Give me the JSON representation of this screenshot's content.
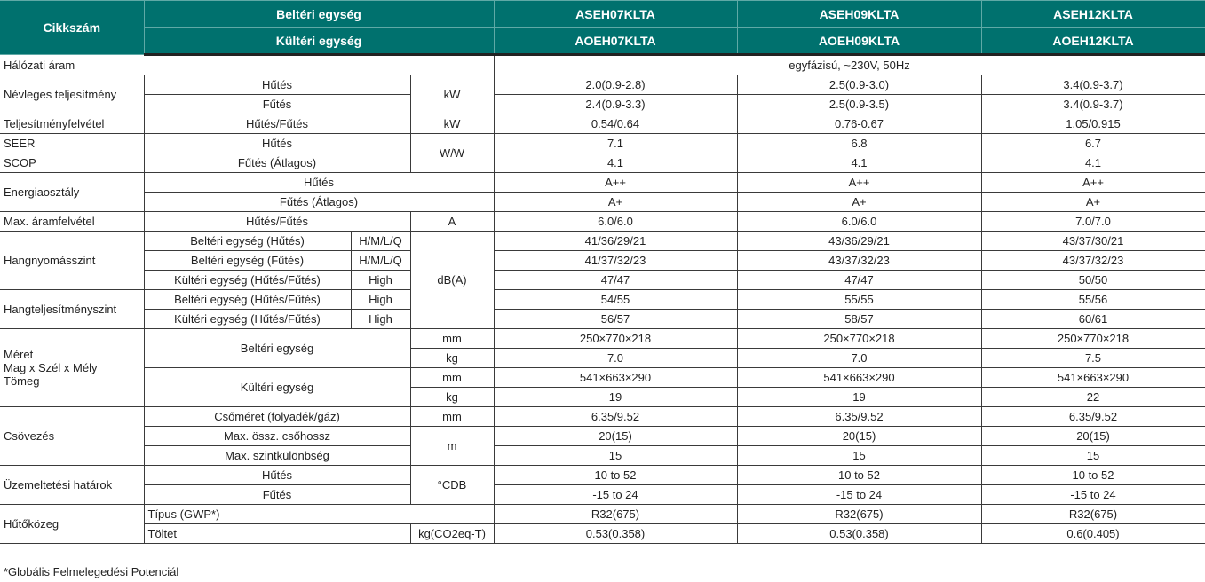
{
  "header": {
    "code": "Cikkszám",
    "indoor": "Beltéri egység",
    "outdoor": "Kültéri egység",
    "indoor_models": [
      "ASEH07KLTA",
      "ASEH09KLTA",
      "ASEH12KLTA"
    ],
    "outdoor_models": [
      "AOEH07KLTA",
      "AOEH09KLTA",
      "AOEH12KLTA"
    ]
  },
  "labels": {
    "power_supply": "Hálózati áram",
    "nominal_capacity": "Névleges teljesítmény",
    "cooling": "Hűtés",
    "heating": "Fűtés",
    "heating_avg": "Fűtés (Átlagos)",
    "cool_heat": "Hűtés/Fűtés",
    "kw": "kW",
    "power_input": "Teljesítményfelvétel",
    "seer": "SEER",
    "scop": "SCOP",
    "ww": "W/W",
    "energy_class": "Energiaosztály",
    "max_current": "Max. áramfelvétel",
    "amp": "A",
    "sound_pressure": "Hangnyomásszint",
    "indoor_cool": "Beltéri egység (Hűtés)",
    "indoor_heat": "Beltéri egység (Fűtés)",
    "outdoor_cool_heat": "Kültéri egység (Hűtés/Fűtés)",
    "indoor_cool_heat": "Beltéri egység (Hűtés/Fűtés)",
    "hmlq": "H/M/L/Q",
    "high": "High",
    "dba": "dB(A)",
    "sound_power": "Hangteljesítményszint",
    "size_1": "Méret",
    "size_2": "Mag x Szél x Mély",
    "size_3": "Tömeg",
    "indoor_unit": "Beltéri egység",
    "outdoor_unit": "Kültéri egység",
    "mm": "mm",
    "kg": "kg",
    "piping": "Csövezés",
    "pipe_size": "Csőméret (folyadék/gáz)",
    "max_length": "Max. össz. csőhossz",
    "max_height": "Max. szintkülönbség",
    "m": "m",
    "operating": "Üzemeltetési határok",
    "cdb": "°CDB",
    "refrigerant": "Hűtőközeg",
    "type_gwp": "Típus (GWP*)",
    "charge": "Töltet",
    "charge_unit": "kg(CO2eq-T)"
  },
  "power_supply_value": "egyfázisú, ~230V, 50Hz",
  "values": {
    "cap_cool": [
      "2.0(0.9-2.8)",
      "2.5(0.9-3.0)",
      "3.4(0.9-3.7)"
    ],
    "cap_heat": [
      "2.4(0.9-3.3)",
      "2.5(0.9-3.5)",
      "3.4(0.9-3.7)"
    ],
    "input": [
      "0.54/0.64",
      "0.76-0.67",
      "1.05/0.915"
    ],
    "seer": [
      "7.1",
      "6.8",
      "6.7"
    ],
    "scop": [
      "4.1",
      "4.1",
      "4.1"
    ],
    "class_cool": [
      "A++",
      "A++",
      "A++"
    ],
    "class_heat": [
      "A+",
      "A+",
      "A+"
    ],
    "max_current": [
      "6.0/6.0",
      "6.0/6.0",
      "7.0/7.0"
    ],
    "sp_in_cool": [
      "41/36/29/21",
      "43/36/29/21",
      "43/37/30/21"
    ],
    "sp_in_heat": [
      "41/37/32/23",
      "43/37/32/23",
      "43/37/32/23"
    ],
    "sp_out": [
      "47/47",
      "47/47",
      "50/50"
    ],
    "pw_in": [
      "54/55",
      "55/55",
      "55/56"
    ],
    "pw_out": [
      "56/57",
      "58/57",
      "60/61"
    ],
    "in_mm": [
      "250×770×218",
      "250×770×218",
      "250×770×218"
    ],
    "in_kg": [
      "7.0",
      "7.0",
      "7.5"
    ],
    "out_mm": [
      "541×663×290",
      "541×663×290",
      "541×663×290"
    ],
    "out_kg": [
      "19",
      "19",
      "22"
    ],
    "pipe": [
      "6.35/9.52",
      "6.35/9.52",
      "6.35/9.52"
    ],
    "length": [
      "20(15)",
      "20(15)",
      "20(15)"
    ],
    "height": [
      "15",
      "15",
      "15"
    ],
    "op_cool": [
      "10 to 52",
      "10 to 52",
      "10 to 52"
    ],
    "op_heat": [
      "-15 to 24",
      "-15 to 24",
      "-15 to 24"
    ],
    "ref_type": [
      "R32(675)",
      "R32(675)",
      "R32(675)"
    ],
    "ref_charge": [
      "0.53(0.358)",
      "0.53(0.358)",
      "0.6(0.405)"
    ]
  },
  "footnote": "*Globális Felmelegedési Potenciál",
  "colors": {
    "header_bg": "#00716e",
    "header_text": "#ffffff"
  }
}
